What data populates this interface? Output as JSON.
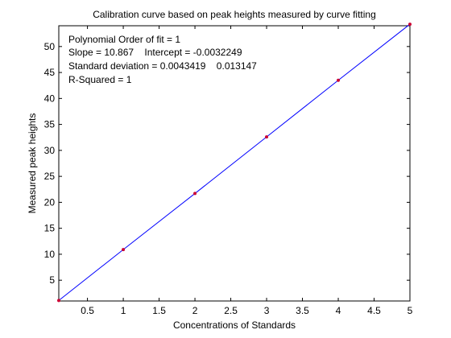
{
  "chart_data": {
    "type": "scatter",
    "title": "Calibration curve based on peak heights measured by curve fitting",
    "xlabel": "Concentrations of Standards",
    "ylabel": "Measured peak heights",
    "xlim": [
      0.1,
      5
    ],
    "ylim": [
      1,
      54
    ],
    "xticks": [
      "0.5",
      "1",
      "1.5",
      "2",
      "2.5",
      "3",
      "3.5",
      "4",
      "4.5",
      "5"
    ],
    "yticks": [
      "5",
      "10",
      "15",
      "20",
      "25",
      "30",
      "35",
      "40",
      "45",
      "50"
    ],
    "grid": false,
    "points": {
      "name": "",
      "color": "#cc0033",
      "x": [
        0.1,
        1,
        2,
        3,
        4,
        5
      ],
      "y": [
        1.1,
        10.9,
        21.7,
        32.6,
        43.5,
        54.3
      ]
    },
    "fit_line": {
      "color": "#0000ff",
      "slope": 10.867,
      "intercept": -0.0032249
    },
    "annotations": [
      "Polynomial Order of fit = 1",
      "Slope = 10.867    Intercept = -0.0032249",
      "Standard deviation = 0.0043419    0.013147",
      "R-Squared = 1"
    ]
  }
}
